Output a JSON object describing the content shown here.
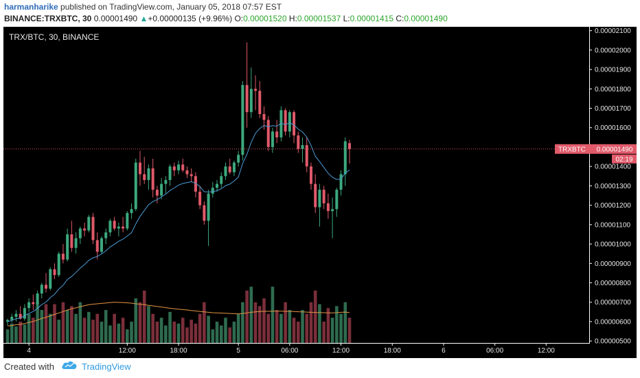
{
  "header": {
    "author": "harmanharike",
    "published_text": "published on TradingView.com, January 05, 2018 07:57 EST",
    "symbol_line": "BINANCE:TRXBTC, 30",
    "last_price": "0.00001490",
    "change_arrow": "▲",
    "change": "+0.00000135 (+9.96%)",
    "o_label": "O:",
    "o_value": "0.00001520",
    "h_label": "H:",
    "h_value": "0.00001537",
    "l_label": "L:",
    "l_value": "0.00001415",
    "c_label": "C:",
    "c_value": "0.00001490"
  },
  "chart": {
    "legend_title": "TRX/BTC, 30, BINANCE",
    "price_tag_label": "TRXBTC",
    "price_tag_value": "0.00001490",
    "countdown": "02:19",
    "colors": {
      "background": "#000000",
      "up": "#3da97e",
      "down": "#e05a6a",
      "ma_fast": "#4a9bd6",
      "ma_slow": "#e39444",
      "vol_up": "#2f6b4f",
      "vol_down": "#7a2f3a",
      "price_line": "#e05a6a"
    }
  },
  "chart_data": {
    "type": "candlestick",
    "title": "TRX/BTC, 30, BINANCE",
    "xlabel": "",
    "ylabel": "",
    "y_ticks": [
      "0.00002100",
      "0.00002000",
      "0.00001900",
      "0.00001800",
      "0.00001700",
      "0.00001600",
      "0.00001500",
      "0.00001400",
      "0.00001300",
      "0.00001200",
      "0.00001100",
      "0.00001000",
      "0.00000900",
      "0.00000800",
      "0.00000700",
      "0.00000600",
      "0.00000500"
    ],
    "x_ticks": [
      "4",
      "12:00",
      "18:00",
      "5",
      "06:00",
      "12:00",
      "18:00",
      "6",
      "06:00",
      "12:00"
    ],
    "ylim": [
      4.9e-06,
      2.12e-05
    ],
    "last_close": 1.49e-05,
    "candles": [
      {
        "o": 6e-06,
        "h": 6.15e-06,
        "l": 5.8e-06,
        "c": 6.08e-06
      },
      {
        "o": 6.08e-06,
        "h": 6.4e-06,
        "l": 5.95e-06,
        "c": 6.25e-06
      },
      {
        "o": 6.25e-06,
        "h": 6.6e-06,
        "l": 6e-06,
        "c": 6.4e-06
      },
      {
        "o": 6.4e-06,
        "h": 6.8e-06,
        "l": 6.1e-06,
        "c": 6.15e-06
      },
      {
        "o": 6.15e-06,
        "h": 6.9e-06,
        "l": 6.05e-06,
        "c": 6.7e-06
      },
      {
        "o": 6.7e-06,
        "h": 7.2e-06,
        "l": 6.5e-06,
        "c": 7e-06
      },
      {
        "o": 7e-06,
        "h": 7.4e-06,
        "l": 6.6e-06,
        "c": 6.9e-06
      },
      {
        "o": 6.9e-06,
        "h": 7.6e-06,
        "l": 6.7e-06,
        "c": 7.45e-06
      },
      {
        "o": 7.45e-06,
        "h": 8e-06,
        "l": 7.2e-06,
        "c": 7.9e-06
      },
      {
        "o": 7.9e-06,
        "h": 8.5e-06,
        "l": 7.5e-06,
        "c": 7.7e-06
      },
      {
        "o": 7.7e-06,
        "h": 8.8e-06,
        "l": 7.6e-06,
        "c": 8.7e-06
      },
      {
        "o": 8.7e-06,
        "h": 9e-06,
        "l": 8.2e-06,
        "c": 8.4e-06
      },
      {
        "o": 8.4e-06,
        "h": 9.6e-06,
        "l": 8.3e-06,
        "c": 9.5e-06
      },
      {
        "o": 9.5e-06,
        "h": 1e-05,
        "l": 9e-06,
        "c": 9.2e-06
      },
      {
        "o": 9.2e-06,
        "h": 1.08e-05,
        "l": 9.1e-06,
        "c": 1.05e-05
      },
      {
        "o": 1.05e-05,
        "h": 1.12e-05,
        "l": 9.6e-06,
        "c": 9.8e-06
      },
      {
        "o": 9.8e-06,
        "h": 1.06e-05,
        "l": 9.5e-06,
        "c": 1.03e-05
      },
      {
        "o": 1.03e-05,
        "h": 1.09e-05,
        "l": 1e-05,
        "c": 1.08e-05
      },
      {
        "o": 1.08e-05,
        "h": 1.11e-05,
        "l": 1.04e-05,
        "c": 1.07e-05
      },
      {
        "o": 1.07e-05,
        "h": 1.15e-05,
        "l": 1.06e-05,
        "c": 1.14e-05
      },
      {
        "o": 1.14e-05,
        "h": 1.16e-05,
        "l": 1e-05,
        "c": 1.02e-05
      },
      {
        "o": 1.02e-05,
        "h": 1.06e-05,
        "l": 9.2e-06,
        "c": 9.6e-06
      },
      {
        "o": 9.6e-06,
        "h": 1.04e-05,
        "l": 9.5e-06,
        "c": 1.03e-05
      },
      {
        "o": 1.03e-05,
        "h": 1.08e-05,
        "l": 1e-05,
        "c": 1.06e-05
      },
      {
        "o": 1.06e-05,
        "h": 1.13e-05,
        "l": 1.04e-05,
        "c": 1.12e-05
      },
      {
        "o": 1.12e-05,
        "h": 1.14e-05,
        "l": 1.07e-05,
        "c": 1.08e-05
      },
      {
        "o": 1.08e-05,
        "h": 1.11e-05,
        "l": 1.04e-05,
        "c": 1.09e-05
      },
      {
        "o": 1.09e-05,
        "h": 1.14e-05,
        "l": 1.06e-05,
        "c": 1.08e-05
      },
      {
        "o": 1.08e-05,
        "h": 1.17e-05,
        "l": 1.07e-05,
        "c": 1.16e-05
      },
      {
        "o": 1.16e-05,
        "h": 1.21e-05,
        "l": 1.13e-05,
        "c": 1.18e-05
      },
      {
        "o": 1.18e-05,
        "h": 1.44e-05,
        "l": 1.17e-05,
        "c": 1.42e-05
      },
      {
        "o": 1.42e-05,
        "h": 1.48e-05,
        "l": 1.3e-05,
        "c": 1.36e-05
      },
      {
        "o": 1.36e-05,
        "h": 1.45e-05,
        "l": 1.31e-05,
        "c": 1.33e-05
      },
      {
        "o": 1.33e-05,
        "h": 1.41e-05,
        "l": 1.28e-05,
        "c": 1.39e-05
      },
      {
        "o": 1.39e-05,
        "h": 1.44e-05,
        "l": 1.24e-05,
        "c": 1.28e-05
      },
      {
        "o": 1.28e-05,
        "h": 1.3e-05,
        "l": 1.21e-05,
        "c": 1.25e-05
      },
      {
        "o": 1.25e-05,
        "h": 1.34e-05,
        "l": 1.23e-05,
        "c": 1.31e-05
      },
      {
        "o": 1.31e-05,
        "h": 1.35e-05,
        "l": 1.26e-05,
        "c": 1.33e-05
      },
      {
        "o": 1.33e-05,
        "h": 1.41e-05,
        "l": 1.3e-05,
        "c": 1.4e-05
      },
      {
        "o": 1.4e-05,
        "h": 1.42e-05,
        "l": 1.35e-05,
        "c": 1.38e-05
      },
      {
        "o": 1.38e-05,
        "h": 1.43e-05,
        "l": 1.36e-05,
        "c": 1.41e-05
      },
      {
        "o": 1.41e-05,
        "h": 1.44e-05,
        "l": 1.37e-05,
        "c": 1.38e-05
      },
      {
        "o": 1.38e-05,
        "h": 1.4e-05,
        "l": 1.34e-05,
        "c": 1.36e-05
      },
      {
        "o": 1.36e-05,
        "h": 1.39e-05,
        "l": 1.32e-05,
        "c": 1.35e-05
      },
      {
        "o": 1.35e-05,
        "h": 1.37e-05,
        "l": 1.24e-05,
        "c": 1.27e-05
      },
      {
        "o": 1.27e-05,
        "h": 1.3e-05,
        "l": 1.18e-05,
        "c": 1.2e-05
      },
      {
        "o": 1.2e-05,
        "h": 1.22e-05,
        "l": 1.1e-05,
        "c": 1.12e-05
      },
      {
        "o": 1.12e-05,
        "h": 1.28e-05,
        "l": 9.9e-06,
        "c": 1.26e-05
      },
      {
        "o": 1.26e-05,
        "h": 1.32e-05,
        "l": 1.24e-05,
        "c": 1.29e-05
      },
      {
        "o": 1.29e-05,
        "h": 1.33e-05,
        "l": 1.27e-05,
        "c": 1.31e-05
      },
      {
        "o": 1.31e-05,
        "h": 1.37e-05,
        "l": 1.29e-05,
        "c": 1.35e-05
      },
      {
        "o": 1.35e-05,
        "h": 1.42e-05,
        "l": 1.33e-05,
        "c": 1.4e-05
      },
      {
        "o": 1.4e-05,
        "h": 1.44e-05,
        "l": 1.36e-05,
        "c": 1.37e-05
      },
      {
        "o": 1.37e-05,
        "h": 1.43e-05,
        "l": 1.35e-05,
        "c": 1.42e-05
      },
      {
        "o": 1.42e-05,
        "h": 1.48e-05,
        "l": 1.4e-05,
        "c": 1.46e-05
      },
      {
        "o": 1.46e-05,
        "h": 1.84e-05,
        "l": 1.43e-05,
        "c": 1.82e-05
      },
      {
        "o": 1.82e-05,
        "h": 2.04e-05,
        "l": 1.6e-05,
        "c": 1.68e-05
      },
      {
        "o": 1.68e-05,
        "h": 1.91e-05,
        "l": 1.65e-05,
        "c": 1.8e-05
      },
      {
        "o": 1.8e-05,
        "h": 1.87e-05,
        "l": 1.69e-05,
        "c": 1.79e-05
      },
      {
        "o": 1.79e-05,
        "h": 1.84e-05,
        "l": 1.65e-05,
        "c": 1.67e-05
      },
      {
        "o": 1.67e-05,
        "h": 1.71e-05,
        "l": 1.59e-05,
        "c": 1.64e-05
      },
      {
        "o": 1.64e-05,
        "h": 1.66e-05,
        "l": 1.48e-05,
        "c": 1.5e-05
      },
      {
        "o": 1.5e-05,
        "h": 1.6e-05,
        "l": 1.47e-05,
        "c": 1.58e-05
      },
      {
        "o": 1.58e-05,
        "h": 1.64e-05,
        "l": 1.52e-05,
        "c": 1.55e-05
      },
      {
        "o": 1.55e-05,
        "h": 1.71e-05,
        "l": 1.53e-05,
        "c": 1.69e-05
      },
      {
        "o": 1.69e-05,
        "h": 1.7e-05,
        "l": 1.56e-05,
        "c": 1.58e-05
      },
      {
        "o": 1.58e-05,
        "h": 1.69e-05,
        "l": 1.55e-05,
        "c": 1.68e-05
      },
      {
        "o": 1.68e-05,
        "h": 1.69e-05,
        "l": 1.52e-05,
        "c": 1.56e-05
      },
      {
        "o": 1.56e-05,
        "h": 1.58e-05,
        "l": 1.47e-05,
        "c": 1.49e-05
      },
      {
        "o": 1.49e-05,
        "h": 1.55e-05,
        "l": 1.42e-05,
        "c": 1.51e-05
      },
      {
        "o": 1.51e-05,
        "h": 1.55e-05,
        "l": 1.37e-05,
        "c": 1.4e-05
      },
      {
        "o": 1.4e-05,
        "h": 1.42e-05,
        "l": 1.28e-05,
        "c": 1.31e-05
      },
      {
        "o": 1.31e-05,
        "h": 1.36e-05,
        "l": 1.16e-05,
        "c": 1.19e-05
      },
      {
        "o": 1.19e-05,
        "h": 1.31e-05,
        "l": 1.09e-05,
        "c": 1.28e-05
      },
      {
        "o": 1.28e-05,
        "h": 1.3e-05,
        "l": 1.18e-05,
        "c": 1.21e-05
      },
      {
        "o": 1.21e-05,
        "h": 1.26e-05,
        "l": 1.13e-05,
        "c": 1.17e-05
      },
      {
        "o": 1.17e-05,
        "h": 1.24e-05,
        "l": 1.03e-05,
        "c": 1.18e-05
      },
      {
        "o": 1.18e-05,
        "h": 1.29e-05,
        "l": 1.14e-05,
        "c": 1.28e-05
      },
      {
        "o": 1.28e-05,
        "h": 1.38e-05,
        "l": 1.25e-05,
        "c": 1.36e-05
      },
      {
        "o": 1.36e-05,
        "h": 1.55e-05,
        "l": 1.3e-05,
        "c": 1.53e-05
      },
      {
        "o": 1.52e-05,
        "h": 1.537e-05,
        "l": 1.415e-05,
        "c": 1.49e-05
      }
    ],
    "ma_fast": [
      6e-06,
      6.06e-06,
      6.15e-06,
      6.19e-06,
      6.3e-06,
      6.43e-06,
      6.52e-06,
      6.68e-06,
      6.88e-06,
      7.01e-06,
      7.24e-06,
      7.41e-06,
      7.68e-06,
      7.87e-06,
      8.17e-06,
      8.33e-06,
      8.54e-06,
      8.76e-06,
      8.94e-06,
      9.16e-06,
      9.29e-06,
      9.36e-06,
      9.49e-06,
      9.65e-06,
      9.85e-06,
      9.99e-06,
      1.014e-05,
      1.025e-05,
      1.041e-05,
      1.058e-05,
      1.104e-05,
      1.143e-05,
      1.173e-05,
      1.203e-05,
      1.219e-05,
      1.229e-05,
      1.243e-05,
      1.257e-05,
      1.276e-05,
      1.289e-05,
      1.304e-05,
      1.312e-05,
      1.317e-05,
      1.321e-05,
      1.313e-05,
      1.296e-05,
      1.27e-05,
      1.268e-05,
      1.27e-05,
      1.275e-05,
      1.285e-05,
      1.301e-05,
      1.309e-05,
      1.325e-05,
      1.345e-05,
      1.416e-05,
      1.463e-05,
      1.524e-05,
      1.571e-05,
      1.596e-05,
      1.611e-05,
      1.605e-05,
      1.61e-05,
      1.608e-05,
      1.623e-05,
      1.615e-05,
      1.626e-05,
      1.614e-05,
      1.592e-05,
      1.578e-05,
      1.551e-05,
      1.508e-05,
      1.452e-05,
      1.426e-05,
      1.395e-05,
      1.365e-05,
      1.344e-05,
      1.333e-05,
      1.335e-05,
      1.366e-05,
      1.382e-05
    ],
    "ma_slow": [
      5.78e-06,
      5.8e-06,
      5.84e-06,
      5.86e-06,
      5.9e-06,
      5.96e-06,
      6.01e-06,
      6.08e-06,
      6.16e-06,
      6.22e-06,
      6.3e-06,
      6.37e-06,
      6.45e-06,
      6.52e-06,
      6.6e-06,
      6.66e-06,
      6.71e-06,
      6.77e-06,
      6.82e-06,
      6.87e-06,
      6.9e-06,
      6.92e-06,
      6.94e-06,
      6.96e-06,
      6.98e-06,
      7e-06,
      6.99e-06,
      6.98e-06,
      6.97e-06,
      6.95e-06,
      6.92e-06,
      6.9e-06,
      6.87e-06,
      6.84e-06,
      6.81e-06,
      6.78e-06,
      6.75e-06,
      6.72e-06,
      6.69e-06,
      6.66e-06,
      6.64e-06,
      6.62e-06,
      6.6e-06,
      6.57e-06,
      6.55e-06,
      6.52e-06,
      6.5e-06,
      6.48e-06,
      6.46e-06,
      6.45e-06,
      6.44e-06,
      6.43e-06,
      6.42e-06,
      6.41e-06,
      6.4e-06,
      6.42e-06,
      6.45e-06,
      6.48e-06,
      6.5e-06,
      6.52e-06,
      6.53e-06,
      6.53e-06,
      6.54e-06,
      6.54e-06,
      6.54e-06,
      6.53e-06,
      6.53e-06,
      6.52e-06,
      6.51e-06,
      6.5e-06,
      6.49e-06,
      6.48e-06,
      6.47e-06,
      6.47e-06,
      6.46e-06,
      6.45e-06,
      6.45e-06,
      6.46e-06,
      6.48e-06,
      6.49e-06,
      6.47e-06
    ],
    "volume_scale": [
      5e-06,
      8e-06
    ],
    "volumes": [
      5.6e-06,
      5.9e-06,
      5.75e-06,
      6e-06,
      5.85e-06,
      6.4e-06,
      6.2e-06,
      7e-06,
      6.6e-06,
      6.9e-06,
      6.4e-06,
      6.9e-06,
      6.1e-06,
      7e-06,
      6.6e-06,
      6.8e-06,
      6.4e-06,
      7e-06,
      6.2e-06,
      6.5e-06,
      6.1e-06,
      6.4e-06,
      6e-06,
      6.6e-06,
      5.8e-06,
      6.4e-06,
      5.9e-06,
      6.2e-06,
      5.6e-06,
      6e-06,
      7.2e-06,
      7e-06,
      7.6e-06,
      6.8e-06,
      6.4e-06,
      6e-06,
      6.2e-06,
      5.8e-06,
      6.5e-06,
      6e-06,
      5.9e-06,
      6.2e-06,
      5.7e-06,
      6.1e-06,
      5.9e-06,
      6.4e-06,
      7e-06,
      6.3e-06,
      5.6e-06,
      6e-06,
      5.8e-06,
      6.2e-06,
      5.7e-06,
      6e-06,
      6.4e-06,
      7e-06,
      7.6e-06,
      7.8e-06,
      7e-06,
      6.8e-06,
      7.2e-06,
      6.4e-06,
      7.8e-06,
      6.6e-06,
      6.4e-06,
      7e-06,
      6.6e-06,
      6.2e-06,
      6e-06,
      6.6e-06,
      6.4e-06,
      7e-06,
      7.6e-06,
      6.9e-06,
      6e-06,
      6.7e-06,
      6.2e-06,
      6.8e-06,
      6.4e-06,
      7e-06,
      6.2e-06
    ]
  },
  "footer": {
    "created_with": "Created with",
    "brand": "TradingView"
  }
}
